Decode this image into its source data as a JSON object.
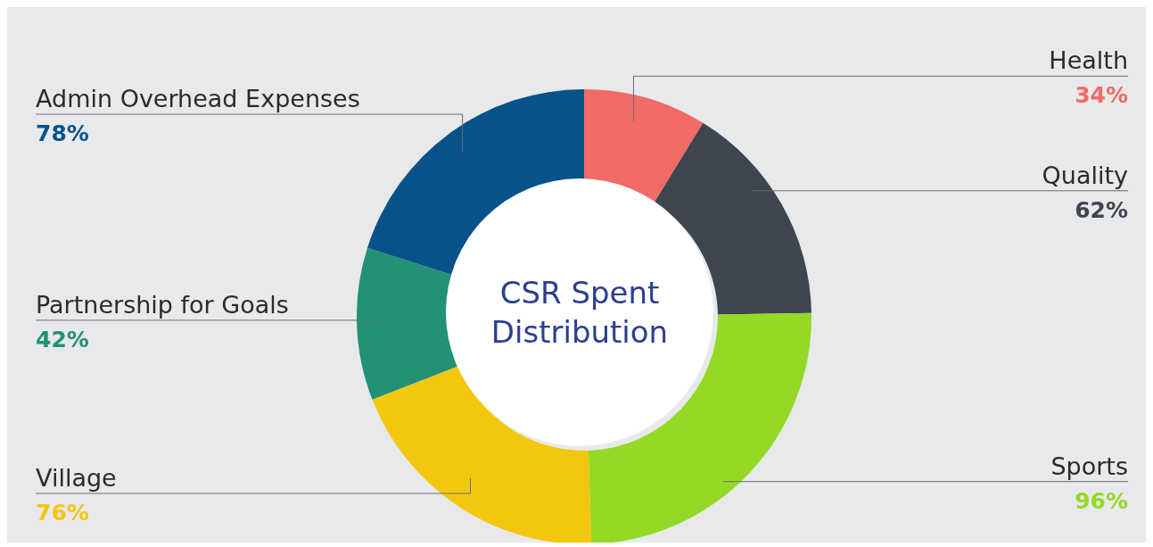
{
  "chart_data": {
    "type": "donut",
    "title": "CSR Spent Distribution",
    "categories": [
      "Health",
      "Quality",
      "Sports",
      "Village",
      "Partnership for Goals",
      "Admin Overhead Expenses"
    ],
    "values": [
      34,
      62,
      96,
      76,
      42,
      78
    ],
    "value_labels": [
      "34%",
      "62%",
      "96%",
      "76%",
      "42%",
      "78%"
    ],
    "colors": [
      "#f26a66",
      "#3d4650",
      "#94d926",
      "#f4c70f",
      "#229175",
      "#08528c"
    ],
    "legend": false
  }
}
